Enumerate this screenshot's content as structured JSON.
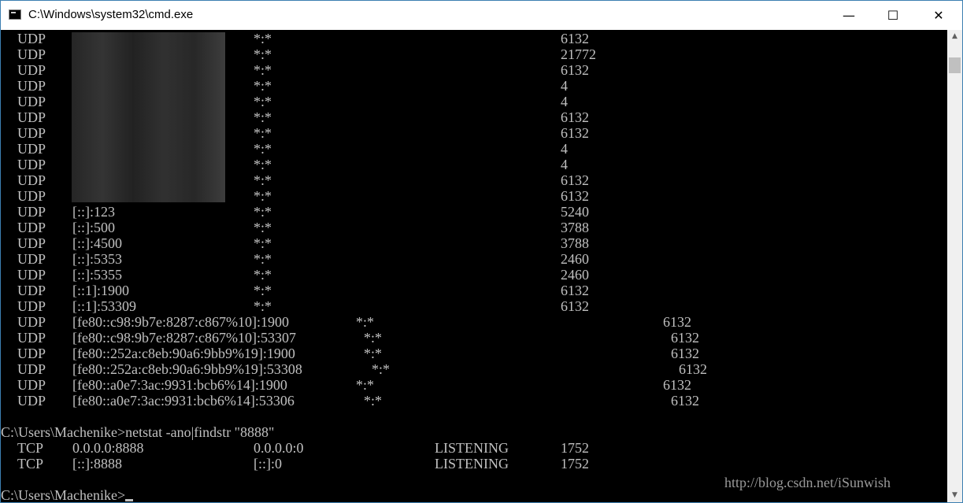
{
  "window": {
    "title": "C:\\Windows\\system32\\cmd.exe",
    "controls": {
      "minimize": "—",
      "maximize": "☐",
      "close": "✕"
    }
  },
  "rows": [
    {
      "proto": "UDP",
      "local": "",
      "foreign": "*:*",
      "pid": "6132"
    },
    {
      "proto": "UDP",
      "local": "",
      "foreign": "*:*",
      "pid": "21772"
    },
    {
      "proto": "UDP",
      "local": "",
      "foreign": "*:*",
      "pid": "6132"
    },
    {
      "proto": "UDP",
      "local": "",
      "foreign": "*:*",
      "pid": "4"
    },
    {
      "proto": "UDP",
      "local": "",
      "foreign": "*:*",
      "pid": "4"
    },
    {
      "proto": "UDP",
      "local": "",
      "foreign": "*:*",
      "pid": "6132"
    },
    {
      "proto": "UDP",
      "local": "",
      "foreign": "*:*",
      "pid": "6132"
    },
    {
      "proto": "UDP",
      "local": "",
      "foreign": "*:*",
      "pid": "4"
    },
    {
      "proto": "UDP",
      "local": "",
      "foreign": "*:*",
      "pid": "4"
    },
    {
      "proto": "UDP",
      "local": "",
      "foreign": "*:*",
      "pid": "6132"
    },
    {
      "proto": "UDP",
      "local": "",
      "foreign": "*:*",
      "pid": "6132"
    },
    {
      "proto": "UDP",
      "local": "[::]:123",
      "foreign": "*:*",
      "pid": "5240"
    },
    {
      "proto": "UDP",
      "local": "[::]:500",
      "foreign": "*:*",
      "pid": "3788"
    },
    {
      "proto": "UDP",
      "local": "[::]:4500",
      "foreign": "*:*",
      "pid": "3788"
    },
    {
      "proto": "UDP",
      "local": "[::]:5353",
      "foreign": "*:*",
      "pid": "2460"
    },
    {
      "proto": "UDP",
      "local": "[::]:5355",
      "foreign": "*:*",
      "pid": "2460"
    },
    {
      "proto": "UDP",
      "local": "[::1]:1900",
      "foreign": "*:*",
      "pid": "6132"
    },
    {
      "proto": "UDP",
      "local": "[::1]:53309",
      "foreign": "*:*",
      "pid": "6132"
    },
    {
      "proto": "UDP",
      "local": "[fe80::c98:9b7e:8287:c867%10]:1900",
      "foreign": "*:*",
      "pid": "6132"
    },
    {
      "proto": "UDP",
      "local": "[fe80::c98:9b7e:8287:c867%10]:53307",
      "foreign": "*:*",
      "pid": "6132"
    },
    {
      "proto": "UDP",
      "local": "[fe80::252a:c8eb:90a6:9bb9%19]:1900",
      "foreign": "*:*",
      "pid": "6132"
    },
    {
      "proto": "UDP",
      "local": "[fe80::252a:c8eb:90a6:9bb9%19]:53308",
      "foreign": "*:*",
      "pid": "6132"
    },
    {
      "proto": "UDP",
      "local": "[fe80::a0e7:3ac:9931:bcb6%14]:1900",
      "foreign": "*:*",
      "pid": "6132"
    },
    {
      "proto": "UDP",
      "local": "[fe80::a0e7:3ac:9931:bcb6%14]:53306",
      "foreign": "*:*",
      "pid": "6132"
    }
  ],
  "command": "C:\\Users\\Machenike>netstat -ano|findstr \"8888\"",
  "results": [
    {
      "proto": "TCP",
      "local": "0.0.0.0:8888",
      "foreign": "0.0.0.0:0",
      "state": "LISTENING",
      "pid": "1752"
    },
    {
      "proto": "TCP",
      "local": "[::]:8888",
      "foreign": "[::]:0",
      "state": "LISTENING",
      "pid": "1752"
    }
  ],
  "prompt": "C:\\Users\\Machenike>",
  "watermark": "http://blog.csdn.net/iSunwish",
  "scrollbar": {
    "position_fraction": 0.0
  }
}
